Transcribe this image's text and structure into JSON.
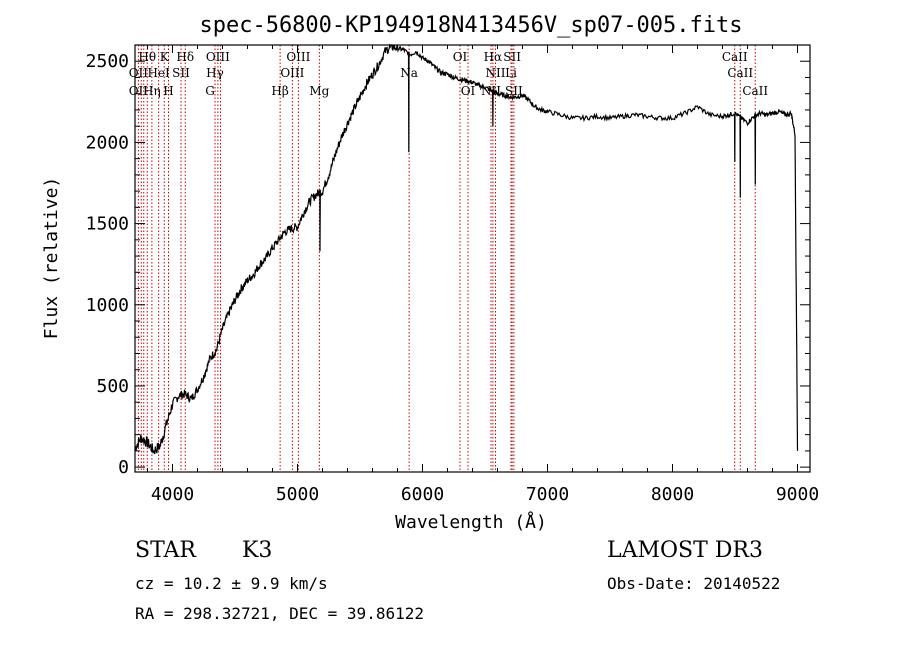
{
  "chart_data": {
    "type": "line",
    "title": "spec-56800-KP194918N413456V_sp07-005.fits",
    "xlabel": "Wavelength (Å)",
    "ylabel": "Flux (relative)",
    "xlim": [
      3700,
      9100
    ],
    "ylim": [
      -30,
      2600
    ],
    "xticks": [
      4000,
      5000,
      6000,
      7000,
      8000,
      9000
    ],
    "yticks": [
      0,
      500,
      1000,
      1500,
      2000,
      2500
    ],
    "grid": false,
    "series": [
      {
        "x": [
          3700,
          3750,
          3800,
          3850,
          3900,
          3950,
          4000,
          4050,
          4100,
          4150,
          4200,
          4250,
          4300,
          4350,
          4400,
          4450,
          4500,
          4550,
          4600,
          4650,
          4700,
          4750,
          4800,
          4850,
          4900,
          4950,
          5000,
          5050,
          5100,
          5150,
          5200,
          5250,
          5300,
          5350,
          5400,
          5450,
          5500,
          5550,
          5600,
          5650,
          5700,
          5750,
          5800,
          5850,
          5900,
          5950,
          6000,
          6050,
          6100,
          6150,
          6200,
          6250,
          6300,
          6350,
          6400,
          6450,
          6500,
          6550,
          6600,
          6650,
          6700,
          6750,
          6800,
          6850,
          6900,
          6950,
          7000,
          7100,
          7200,
          7300,
          7400,
          7500,
          7600,
          7700,
          7800,
          7900,
          8000,
          8100,
          8200,
          8300,
          8400,
          8450,
          8500,
          8550,
          8600,
          8650,
          8700,
          8750,
          8800,
          8850,
          8900,
          8950,
          8980,
          9000
        ],
        "y": [
          120,
          180,
          150,
          100,
          130,
          260,
          390,
          440,
          450,
          420,
          480,
          560,
          670,
          720,
          850,
          950,
          1030,
          1100,
          1150,
          1190,
          1250,
          1290,
          1350,
          1400,
          1450,
          1470,
          1480,
          1570,
          1640,
          1680,
          1700,
          1800,
          1920,
          2030,
          2120,
          2200,
          2280,
          2360,
          2420,
          2480,
          2560,
          2590,
          2580,
          2570,
          2540,
          2560,
          2520,
          2500,
          2460,
          2430,
          2420,
          2400,
          2390,
          2380,
          2370,
          2350,
          2340,
          2320,
          2300,
          2290,
          2280,
          2280,
          2290,
          2260,
          2220,
          2200,
          2190,
          2170,
          2150,
          2150,
          2160,
          2150,
          2160,
          2170,
          2160,
          2150,
          2150,
          2180,
          2220,
          2170,
          2160,
          2170,
          2180,
          2150,
          2120,
          2160,
          2180,
          2170,
          2180,
          2190,
          2170,
          2180,
          2050,
          100
        ]
      }
    ],
    "absorption_dips": [
      {
        "x": 5890,
        "y": 1940
      },
      {
        "x": 5180,
        "y": 1330
      },
      {
        "x": 6563,
        "y": 2100
      },
      {
        "x": 8498,
        "y": 1880
      },
      {
        "x": 8542,
        "y": 1660
      },
      {
        "x": 8662,
        "y": 1740
      }
    ],
    "line_markers": {
      "positions": [
        3727,
        3750,
        3770,
        3798,
        3835,
        3889,
        3934,
        3968,
        4068,
        4102,
        4340,
        4363,
        4384,
        4861,
        4959,
        5007,
        5175,
        5893,
        6300,
        6364,
        6548,
        6563,
        6584,
        6708,
        6717,
        6731,
        8498,
        8542,
        8662
      ],
      "labels": [
        {
          "text": "Hθ",
          "x": 3798,
          "row": 1
        },
        {
          "text": "K",
          "x": 3934,
          "row": 1
        },
        {
          "text": "Hδ",
          "x": 4102,
          "row": 1
        },
        {
          "text": "OIII",
          "x": 4363,
          "row": 1
        },
        {
          "text": "OIII",
          "x": 5007,
          "row": 1
        },
        {
          "text": "OI",
          "x": 6300,
          "row": 1
        },
        {
          "text": "Hα",
          "x": 6563,
          "row": 1
        },
        {
          "text": "SII",
          "x": 6717,
          "row": 1
        },
        {
          "text": "CaII",
          "x": 8498,
          "row": 1
        },
        {
          "text": "OII",
          "x": 3727,
          "row": 2
        },
        {
          "text": "HeI",
          "x": 3889,
          "row": 2
        },
        {
          "text": "SII",
          "x": 4068,
          "row": 2
        },
        {
          "text": "Hγ",
          "x": 4340,
          "row": 2
        },
        {
          "text": "OIII",
          "x": 4959,
          "row": 2
        },
        {
          "text": "Na",
          "x": 5893,
          "row": 2
        },
        {
          "text": "NII",
          "x": 6584,
          "row": 2
        },
        {
          "text": "Li",
          "x": 6708,
          "row": 2
        },
        {
          "text": "CaII",
          "x": 8542,
          "row": 2
        },
        {
          "text": "OII",
          "x": 3727,
          "row": 3
        },
        {
          "text": "Hη",
          "x": 3835,
          "row": 3
        },
        {
          "text": "H",
          "x": 3968,
          "row": 3
        },
        {
          "text": "G",
          "x": 4300,
          "row": 3
        },
        {
          "text": "Hβ",
          "x": 4861,
          "row": 3
        },
        {
          "text": "Mg",
          "x": 5175,
          "row": 3
        },
        {
          "text": "OI",
          "x": 6364,
          "row": 3
        },
        {
          "text": "NII",
          "x": 6548,
          "row": 3
        },
        {
          "text": "SII",
          "x": 6731,
          "row": 3
        },
        {
          "text": "CaII",
          "x": 8662,
          "row": 3
        }
      ]
    },
    "colors": {
      "spectrum": "#000000",
      "markers": "#cc0000",
      "axes": "#000000"
    }
  },
  "info": {
    "class": "STAR",
    "subclass": "K3",
    "survey": "LAMOST DR3",
    "cz": "cz = 10.2 ± 9.9 km/s",
    "obs_date": "Obs-Date: 20140522",
    "coords": "RA = 298.32721, DEC =  39.86122"
  }
}
